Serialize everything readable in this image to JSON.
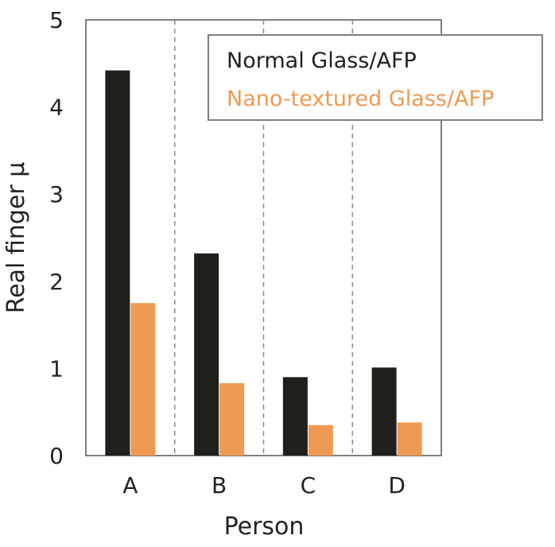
{
  "chart_data": {
    "type": "bar",
    "title": "",
    "xlabel": "Person",
    "ylabel": "Real finger μ",
    "categories": [
      "A",
      "B",
      "C",
      "D"
    ],
    "series": [
      {
        "name": "Normal Glass/AFP",
        "values": [
          4.42,
          2.32,
          0.9,
          1.01
        ],
        "color": "#1f1f1c"
      },
      {
        "name": "Nano-textured Glass/AFP",
        "values": [
          1.75,
          0.83,
          0.35,
          0.38
        ],
        "color": "#ef9a52"
      }
    ],
    "ylim": [
      0,
      5
    ],
    "yticks": [
      "0",
      "1",
      "2",
      "3",
      "4",
      "5"
    ],
    "grid": "vertical dashed separators between categories",
    "legend_position": "top-right"
  }
}
